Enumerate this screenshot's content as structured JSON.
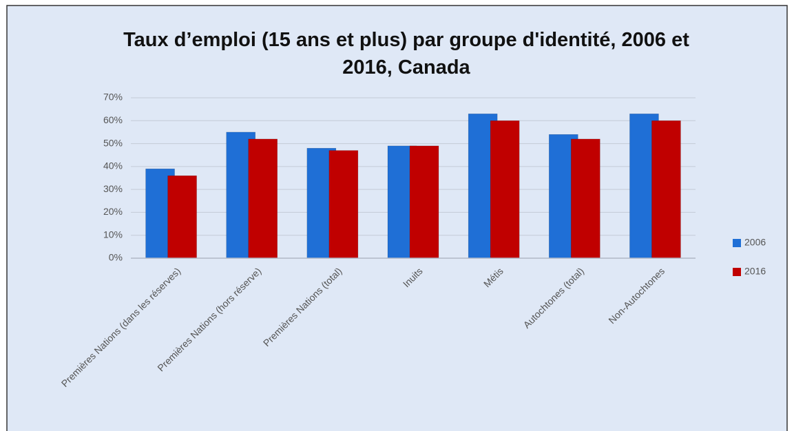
{
  "chart_data": {
    "type": "bar",
    "title": "Taux d’emploi (15 ans et plus) par groupe d'identité, 2006 et 2016, Canada",
    "categories": [
      "Premières Nations (dans les réserves)",
      "Premières Nations (hors réserve)",
      "Premières Nations (total)",
      "Inuits",
      "Métis",
      "Autochtones (total)",
      "Non-Autochtones"
    ],
    "series": [
      {
        "name": "2006",
        "color": "#1f6fd6",
        "values": [
          39,
          55,
          48,
          49,
          63,
          54,
          63
        ]
      },
      {
        "name": "2016",
        "color": "#c00000",
        "values": [
          36,
          52,
          47,
          49,
          60,
          52,
          60
        ]
      }
    ],
    "ylim": [
      0,
      70
    ],
    "yticks": [
      {
        "value": 0,
        "label": "0%"
      },
      {
        "value": 10,
        "label": "10%"
      },
      {
        "value": 20,
        "label": "20%"
      },
      {
        "value": 30,
        "label": "30%"
      },
      {
        "value": 40,
        "label": "40%"
      },
      {
        "value": 50,
        "label": "50%"
      },
      {
        "value": 60,
        "label": "60%"
      },
      {
        "value": 70,
        "label": "70%"
      }
    ],
    "grid": true,
    "legend": "right"
  }
}
